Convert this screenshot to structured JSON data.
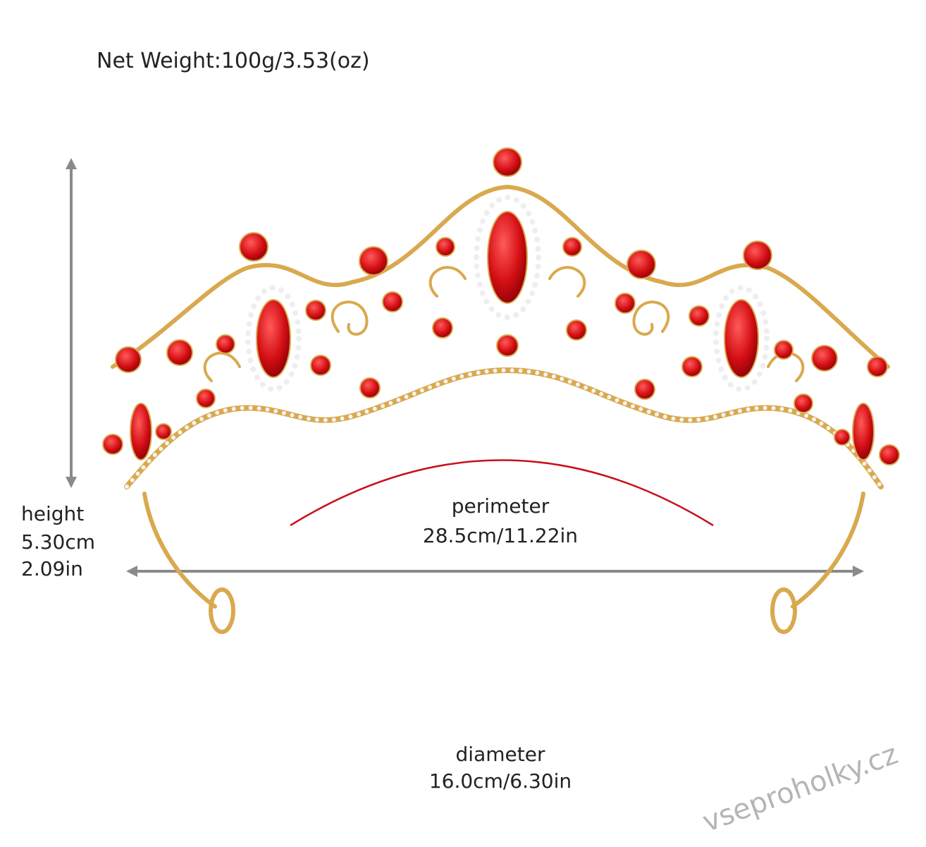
{
  "header": {
    "net_weight": "Net Weight:100g/3.53(oz)"
  },
  "height": {
    "label": "height",
    "cm": "5.30cm",
    "in": "2.09in"
  },
  "perimeter": {
    "label": "perimeter",
    "value": "28.5cm/11.22in"
  },
  "diameter": {
    "label": "diameter",
    "value": "16.0cm/6.30in"
  },
  "watermark": "vseproholky.cz"
}
